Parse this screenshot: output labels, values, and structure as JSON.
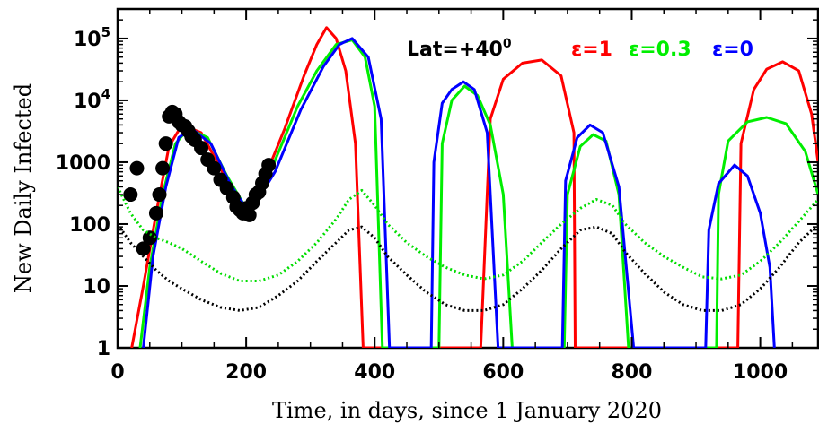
{
  "chart_data": {
    "type": "line",
    "title": "",
    "xlabel": "Time, in days, since 1 January 2020",
    "ylabel": "New Daily Infected",
    "xlim": [
      0,
      1090
    ],
    "ylim": [
      1,
      300000
    ],
    "y_scale": "log",
    "grid": false,
    "x_ticks": [
      {
        "value": 0,
        "label": "0"
      },
      {
        "value": 200,
        "label": "200"
      },
      {
        "value": 400,
        "label": "400"
      },
      {
        "value": 600,
        "label": "600"
      },
      {
        "value": 800,
        "label": "800"
      },
      {
        "value": 1000,
        "label": "1000"
      }
    ],
    "y_ticks": [
      {
        "value": 1,
        "label": "1",
        "exp": ""
      },
      {
        "value": 10,
        "label": "10",
        "exp": ""
      },
      {
        "value": 100,
        "label": "100",
        "exp": ""
      },
      {
        "value": 1000,
        "label": "1000",
        "exp": ""
      },
      {
        "value": 10000,
        "label": "10",
        "exp": "4"
      },
      {
        "value": 100000,
        "label": "10",
        "exp": "5"
      }
    ],
    "annotation": {
      "prefix": "Lat=+40",
      "sup": "0"
    },
    "legend_placement": "top-right",
    "series": [
      {
        "name": "ε=1",
        "color": "#ff0000",
        "style": "solid",
        "x": [
          22,
          40,
          60,
          80,
          100,
          130,
          160,
          190,
          200,
          230,
          260,
          290,
          310,
          325,
          340,
          355,
          370,
          382,
          565,
          580,
          600,
          630,
          660,
          690,
          710,
          712,
          965,
          970,
          990,
          1010,
          1035,
          1060,
          1080,
          1090
        ],
        "y": [
          1,
          10,
          150,
          1800,
          4000,
          3000,
          800,
          200,
          120,
          600,
          3500,
          25000,
          80000,
          150000,
          100000,
          30000,
          2000,
          1,
          1,
          5000,
          22000,
          40000,
          45000,
          25000,
          3000,
          1,
          1,
          2000,
          15000,
          32000,
          42000,
          30000,
          6000,
          1000
        ]
      },
      {
        "name": "ε=0.3",
        "color": "#00ee00",
        "style": "solid",
        "x": [
          35,
          50,
          70,
          90,
          110,
          140,
          170,
          200,
          240,
          280,
          310,
          340,
          365,
          385,
          400,
          412,
          500,
          505,
          520,
          540,
          560,
          580,
          600,
          614,
          695,
          700,
          720,
          740,
          760,
          780,
          795,
          932,
          935,
          950,
          980,
          1010,
          1040,
          1070,
          1090
        ],
        "y": [
          1,
          20,
          300,
          2000,
          3500,
          2500,
          600,
          180,
          800,
          8000,
          30000,
          80000,
          95000,
          50000,
          8000,
          1,
          1,
          2000,
          10000,
          17000,
          12000,
          4000,
          300,
          1,
          1,
          300,
          1800,
          2800,
          2200,
          300,
          1,
          1,
          300,
          2200,
          4500,
          5300,
          4200,
          1500,
          300
        ]
      },
      {
        "name": "ε=0",
        "color": "#0000ff",
        "style": "solid",
        "x": [
          40,
          55,
          75,
          95,
          115,
          145,
          175,
          205,
          245,
          285,
          320,
          345,
          365,
          390,
          410,
          423,
          488,
          492,
          505,
          520,
          538,
          555,
          575,
          592,
          692,
          697,
          715,
          735,
          755,
          780,
          803,
          915,
          920,
          935,
          960,
          980,
          1000,
          1015,
          1022
        ],
        "y": [
          1,
          30,
          400,
          2500,
          3500,
          2000,
          450,
          150,
          700,
          7000,
          35000,
          80000,
          100000,
          50000,
          5000,
          1,
          1,
          1000,
          9000,
          15000,
          20000,
          15000,
          3000,
          1,
          1,
          500,
          2500,
          4000,
          3000,
          400,
          1,
          1,
          80,
          450,
          900,
          600,
          150,
          20,
          1
        ]
      },
      {
        "name": "",
        "color": "#000000",
        "style": "markers",
        "x": [
          20,
          30,
          40,
          50,
          60,
          65,
          70,
          75,
          80,
          85,
          90,
          95,
          100,
          105,
          110,
          115,
          120,
          130,
          140,
          150,
          160,
          170,
          180,
          185,
          190,
          195,
          200,
          205,
          210,
          215,
          220,
          225,
          230,
          235
        ],
        "y": [
          300,
          800,
          40,
          60,
          150,
          300,
          800,
          2000,
          5500,
          6500,
          6000,
          4500,
          4000,
          3800,
          3200,
          2600,
          2300,
          1700,
          1100,
          800,
          520,
          380,
          270,
          190,
          170,
          150,
          180,
          140,
          220,
          300,
          330,
          460,
          650,
          900
        ]
      },
      {
        "name": "",
        "color": "#00dd00",
        "style": "dotted",
        "x": [
          0,
          20,
          40,
          60,
          80,
          100,
          130,
          160,
          190,
          220,
          250,
          280,
          310,
          340,
          360,
          380,
          400,
          420,
          450,
          480,
          510,
          540,
          570,
          600,
          630,
          660,
          690,
          720,
          745,
          770,
          790,
          820,
          850,
          880,
          910,
          940,
          970,
          1000,
          1030,
          1060,
          1090
        ],
        "y": [
          400,
          150,
          80,
          60,
          50,
          40,
          25,
          16,
          12,
          12,
          15,
          25,
          50,
          120,
          250,
          350,
          200,
          100,
          50,
          30,
          20,
          15,
          13,
          15,
          25,
          50,
          100,
          180,
          250,
          200,
          100,
          50,
          30,
          20,
          14,
          13,
          15,
          25,
          50,
          110,
          250
        ]
      },
      {
        "name": "",
        "color": "#000000",
        "style": "dotted",
        "x": [
          0,
          20,
          40,
          60,
          80,
          100,
          130,
          160,
          190,
          220,
          250,
          280,
          310,
          340,
          360,
          380,
          400,
          420,
          450,
          480,
          510,
          540,
          570,
          600,
          630,
          660,
          690,
          720,
          745,
          770,
          790,
          820,
          850,
          880,
          910,
          940,
          970,
          1000,
          1030,
          1060,
          1090
        ],
        "y": [
          100,
          50,
          30,
          18,
          12,
          9,
          6,
          4.5,
          4,
          4.5,
          7,
          12,
          25,
          50,
          80,
          90,
          60,
          30,
          15,
          8,
          5,
          4,
          4,
          5,
          9,
          18,
          40,
          80,
          90,
          70,
          35,
          16,
          8,
          5,
          4,
          4,
          5,
          9,
          20,
          50,
          100
        ]
      }
    ]
  }
}
